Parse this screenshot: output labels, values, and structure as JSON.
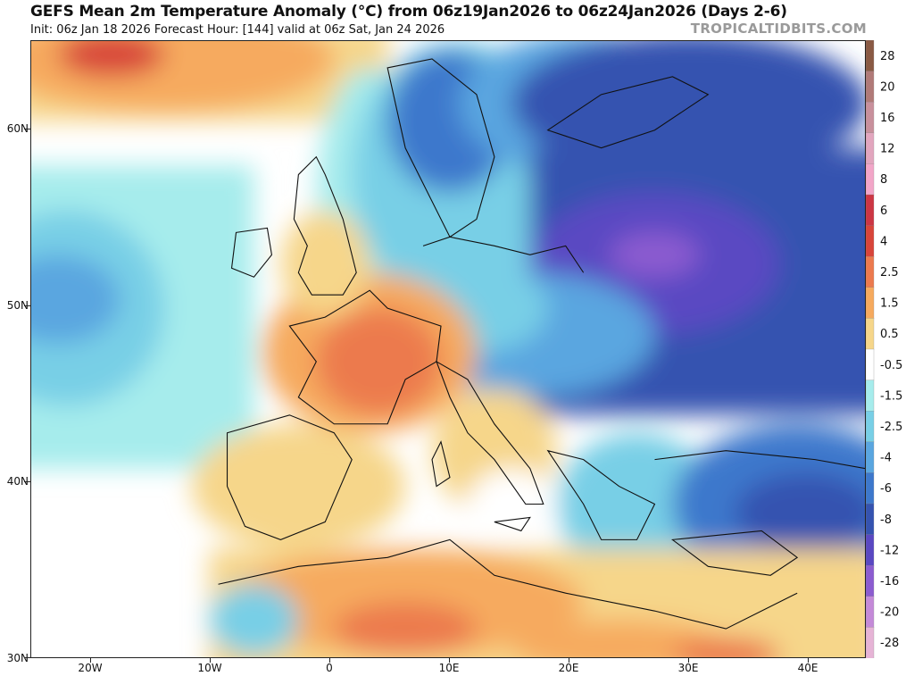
{
  "header": {
    "title": "GEFS Mean 2m Temperature Anomaly (°C) from 06z19Jan2026 to 06z24Jan2026 (Days 2-6)",
    "subtitle": "Init: 06z Jan 18 2026   Forecast Hour: [144]   valid at 06z Sat, Jan 24 2026",
    "credit": "TROPICALTIDBITS.COM"
  },
  "axes": {
    "lat_labels": [
      "60N",
      "50N",
      "40N",
      "30N"
    ],
    "lon_labels": [
      "20W",
      "10W",
      "0",
      "10E",
      "20E",
      "30E",
      "40E"
    ]
  },
  "colorbar": {
    "labels": [
      "28",
      "20",
      "16",
      "12",
      "8",
      "6",
      "4",
      "2.5",
      "1.5",
      "0.5",
      "-0.5",
      "-1.5",
      "-2.5",
      "-4",
      "-6",
      "-8",
      "-12",
      "-16",
      "-20",
      "-28"
    ],
    "colors": [
      "#8a5a44",
      "#b07a78",
      "#c8909c",
      "#e2a6be",
      "#f2a6c8",
      "#cc3644",
      "#d8453a",
      "#ec7a4e",
      "#f6aa5e",
      "#f6d68a",
      "#ffffff",
      "#a6ecec",
      "#78cfe6",
      "#5aa6e0",
      "#3d78cc",
      "#3553b0",
      "#5a48c2",
      "#8c5cd0",
      "#c48ad8",
      "#e6b4d6"
    ]
  },
  "palette": {
    "background": "#ffffff",
    "coast": "#111111"
  }
}
